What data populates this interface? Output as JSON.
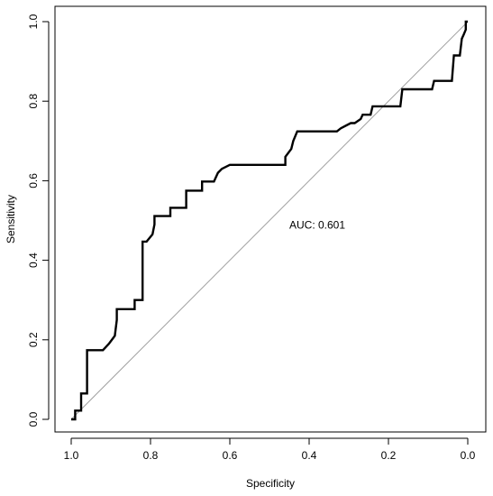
{
  "chart_data": {
    "type": "line",
    "title": "",
    "xlabel": "Specificity",
    "ylabel": "Sensitivity",
    "xlim": [
      1.0,
      0.0
    ],
    "ylim": [
      0.0,
      1.0
    ],
    "x_reversed": true,
    "grid": false,
    "legend": "none",
    "x_ticks": [
      "1.0",
      "0.8",
      "0.6",
      "0.4",
      "0.2",
      "0.0"
    ],
    "x_tick_values": [
      1.0,
      0.8,
      0.6,
      0.4,
      0.2,
      0.0
    ],
    "y_ticks": [
      "0.0",
      "0.2",
      "0.4",
      "0.6",
      "0.8",
      "1.0"
    ],
    "y_tick_values": [
      0.0,
      0.2,
      0.4,
      0.6,
      0.8,
      1.0
    ],
    "annotation": "AUC: 0.601",
    "annotation_at": {
      "x": 0.45,
      "y": 0.48
    },
    "reference_line": {
      "x": [
        1.0,
        0.0
      ],
      "y": [
        0.0,
        1.0
      ],
      "color": "#a0a0a0"
    },
    "series": [
      {
        "color": "#000000",
        "x": [
          1.0,
          0.99,
          0.99,
          0.975,
          0.975,
          0.96,
          0.96,
          0.95,
          0.92,
          0.905,
          0.89,
          0.885,
          0.885,
          0.86,
          0.84,
          0.84,
          0.82,
          0.82,
          0.81,
          0.795,
          0.79,
          0.79,
          0.76,
          0.75,
          0.75,
          0.71,
          0.71,
          0.69,
          0.67,
          0.67,
          0.64,
          0.63,
          0.62,
          0.6,
          0.55,
          0.5,
          0.46,
          0.46,
          0.445,
          0.44,
          0.43,
          0.4,
          0.35,
          0.33,
          0.32,
          0.295,
          0.285,
          0.27,
          0.265,
          0.245,
          0.24,
          0.2,
          0.17,
          0.165,
          0.09,
          0.085,
          0.04,
          0.035,
          0.02,
          0.015,
          0.01,
          0.005,
          0.005,
          0.0
        ],
        "y": [
          0.0,
          0.0,
          0.022,
          0.022,
          0.065,
          0.065,
          0.174,
          0.174,
          0.174,
          0.19,
          0.21,
          0.25,
          0.277,
          0.277,
          0.277,
          0.3,
          0.3,
          0.447,
          0.447,
          0.465,
          0.49,
          0.511,
          0.511,
          0.511,
          0.532,
          0.532,
          0.575,
          0.575,
          0.575,
          0.598,
          0.598,
          0.62,
          0.63,
          0.64,
          0.64,
          0.64,
          0.64,
          0.66,
          0.68,
          0.7,
          0.724,
          0.724,
          0.724,
          0.724,
          0.732,
          0.745,
          0.745,
          0.755,
          0.766,
          0.766,
          0.787,
          0.787,
          0.787,
          0.83,
          0.83,
          0.851,
          0.851,
          0.915,
          0.915,
          0.957,
          0.968,
          0.98,
          1.0,
          1.0
        ]
      }
    ]
  }
}
